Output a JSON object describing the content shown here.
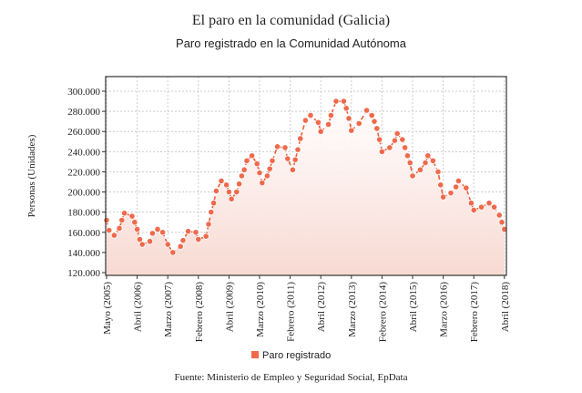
{
  "title": "El paro en la comunidad (Galicia)",
  "source": "Fuente: Ministerio de Empleo y Seguridad Social, EpData",
  "colors": {
    "series": "#ef6a4c",
    "line": "#e8603c",
    "fill": "#f8d9d2"
  },
  "chart_data": {
    "type": "line",
    "title": "Paro registrado en la Comunidad Autónoma",
    "xlabel": "",
    "ylabel": "Personas (Unidades)",
    "ylim": [
      120000,
      300000
    ],
    "yticks": [
      "120.000",
      "140.000",
      "160.000",
      "180.000",
      "200.000",
      "220.000",
      "240.000",
      "260.000",
      "280.000",
      "300.000"
    ],
    "xtick_months": [
      0,
      12,
      24,
      36,
      48,
      60,
      72,
      84,
      96,
      108,
      120,
      132,
      144,
      156
    ],
    "xtick_labels": [
      "Mayo (2005)",
      "Abril (2006)",
      "Marzo (2007)",
      "Febrero (2008)",
      "Abril (2009)",
      "Marzo (2010)",
      "Febrero (2011)",
      "Abril (2012)",
      "Marzo (2013)",
      "Febrero (2014)",
      "Abril (2015)",
      "Marzo (2016)",
      "Febrero (2017)",
      "Abril (2018)"
    ],
    "x_unit": "months since May 2005",
    "grid": true,
    "legend": "bottom-center",
    "series": [
      {
        "name": "Paro registrado",
        "points": [
          [
            0,
            172000
          ],
          [
            1,
            162000
          ],
          [
            3,
            157000
          ],
          [
            5,
            164000
          ],
          [
            6,
            172000
          ],
          [
            7,
            179000
          ],
          [
            10,
            176000
          ],
          [
            11,
            170000
          ],
          [
            12,
            163000
          ],
          [
            13,
            153000
          ],
          [
            14,
            148000
          ],
          [
            17,
            151000
          ],
          [
            18,
            159000
          ],
          [
            20,
            163000
          ],
          [
            22,
            160000
          ],
          [
            24,
            148000
          ],
          [
            26,
            140000
          ],
          [
            29,
            146000
          ],
          [
            30,
            152000
          ],
          [
            32,
            161000
          ],
          [
            35,
            160000
          ],
          [
            36,
            153000
          ],
          [
            39,
            156000
          ],
          [
            40,
            168000
          ],
          [
            41,
            180000
          ],
          [
            42,
            189000
          ],
          [
            43,
            201000
          ],
          [
            45,
            211000
          ],
          [
            47,
            207000
          ],
          [
            48,
            200000
          ],
          [
            49,
            193000
          ],
          [
            51,
            200000
          ],
          [
            52,
            208000
          ],
          [
            53,
            216000
          ],
          [
            54,
            222000
          ],
          [
            55,
            231000
          ],
          [
            57,
            236000
          ],
          [
            59,
            228000
          ],
          [
            60,
            219000
          ],
          [
            61,
            209000
          ],
          [
            63,
            216000
          ],
          [
            64,
            223000
          ],
          [
            65,
            231000
          ],
          [
            67,
            245000
          ],
          [
            70,
            244000
          ],
          [
            71,
            233000
          ],
          [
            73,
            222000
          ],
          [
            74,
            232000
          ],
          [
            75,
            242000
          ],
          [
            76,
            253000
          ],
          [
            78,
            271000
          ],
          [
            80,
            276000
          ],
          [
            83,
            269000
          ],
          [
            84,
            260000
          ],
          [
            87,
            267000
          ],
          [
            88,
            276000
          ],
          [
            90,
            290000
          ],
          [
            93,
            290000
          ],
          [
            94,
            283000
          ],
          [
            95,
            273000
          ],
          [
            96,
            261000
          ],
          [
            99,
            268000
          ],
          [
            102,
            281000
          ],
          [
            104,
            276000
          ],
          [
            105,
            270000
          ],
          [
            106,
            263000
          ],
          [
            107,
            252000
          ],
          [
            108,
            240000
          ],
          [
            111,
            244000
          ],
          [
            113,
            251000
          ],
          [
            114,
            258000
          ],
          [
            116,
            252000
          ],
          [
            117,
            244000
          ],
          [
            118,
            236000
          ],
          [
            119,
            229000
          ],
          [
            120,
            216000
          ],
          [
            123,
            222000
          ],
          [
            125,
            229000
          ],
          [
            126,
            236000
          ],
          [
            128,
            231000
          ],
          [
            130,
            220000
          ],
          [
            131,
            207000
          ],
          [
            132,
            195000
          ],
          [
            135,
            199000
          ],
          [
            137,
            205000
          ],
          [
            138,
            211000
          ],
          [
            141,
            204000
          ],
          [
            143,
            189000
          ],
          [
            144,
            182000
          ],
          [
            147,
            185000
          ],
          [
            150,
            189000
          ],
          [
            152,
            185000
          ],
          [
            154,
            177000
          ],
          [
            155,
            170000
          ],
          [
            156,
            163000
          ]
        ]
      }
    ]
  }
}
